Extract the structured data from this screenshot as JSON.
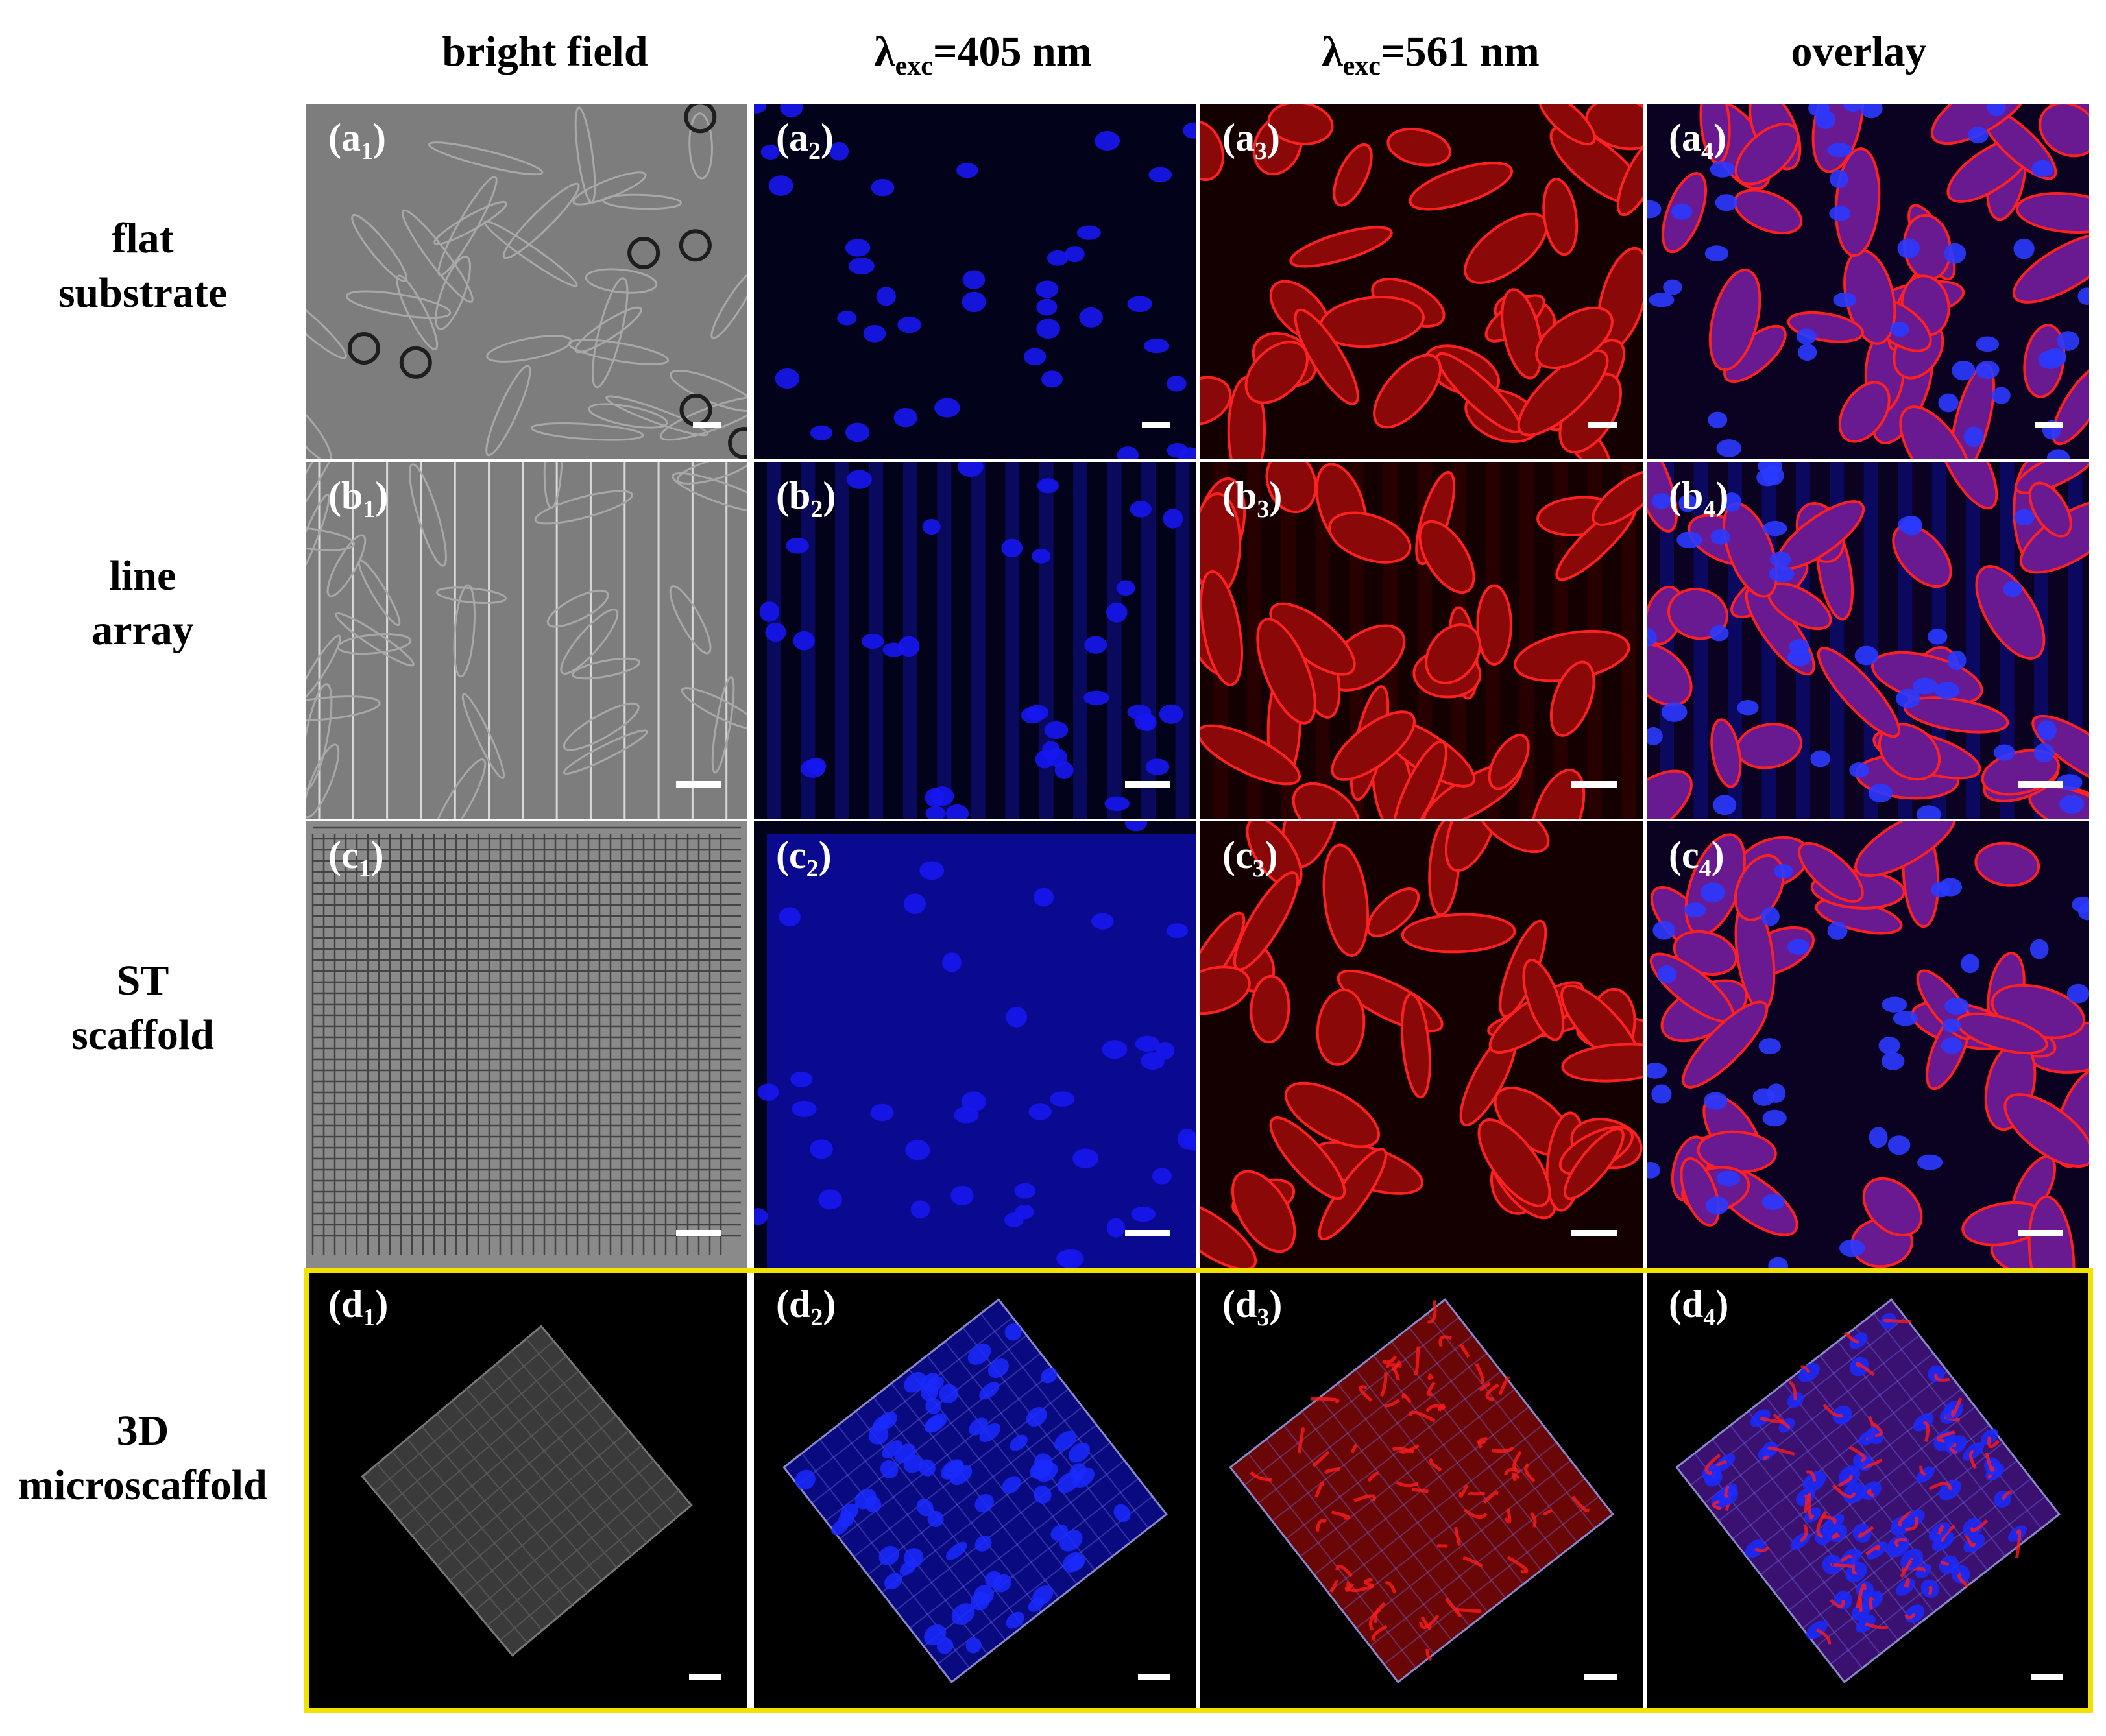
{
  "columns": [
    {
      "id": "bf",
      "label": "bright field"
    },
    {
      "id": "ex405",
      "lambda": "λ",
      "sub": "exc",
      "rest": "=405 nm"
    },
    {
      "id": "ex561",
      "lambda": "λ",
      "sub": "exc",
      "rest": "=561 nm"
    },
    {
      "id": "overlay",
      "label": "overlay"
    }
  ],
  "rows": [
    {
      "line1": "flat",
      "line2": "substrate"
    },
    {
      "line1": "line",
      "line2": "array"
    },
    {
      "line1": "ST",
      "line2": "scaffold"
    },
    {
      "line1": "3D",
      "line2": "microscaffold"
    }
  ],
  "panels": [
    {
      "letter": "a",
      "index": "1"
    },
    {
      "letter": "a",
      "index": "2"
    },
    {
      "letter": "a",
      "index": "3"
    },
    {
      "letter": "a",
      "index": "4"
    },
    {
      "letter": "b",
      "index": "1"
    },
    {
      "letter": "b",
      "index": "2"
    },
    {
      "letter": "b",
      "index": "3"
    },
    {
      "letter": "b",
      "index": "4"
    },
    {
      "letter": "c",
      "index": "1"
    },
    {
      "letter": "c",
      "index": "2"
    },
    {
      "letter": "c",
      "index": "3"
    },
    {
      "letter": "c",
      "index": "4"
    },
    {
      "letter": "d",
      "index": "1"
    },
    {
      "letter": "d",
      "index": "2"
    },
    {
      "letter": "d",
      "index": "3"
    },
    {
      "letter": "d",
      "index": "4"
    }
  ],
  "colors": {
    "bright_field": "#7d7d7d",
    "blue_channel": "#0a0aa8",
    "red_channel": "#cc1010",
    "overlay": "#5a1a8a",
    "highlight_frame": "#f2e200"
  }
}
